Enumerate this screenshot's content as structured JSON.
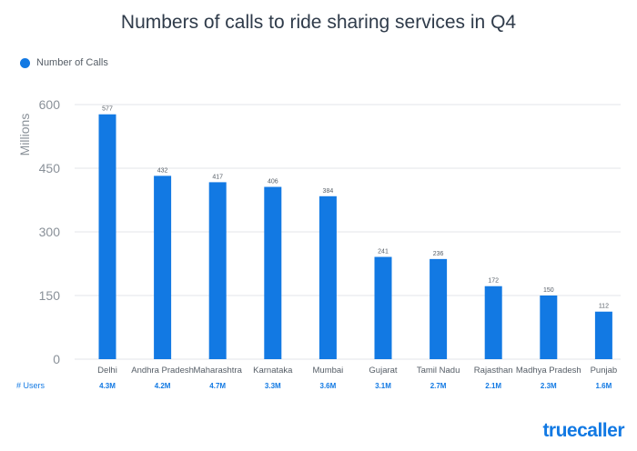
{
  "chart_data": {
    "type": "bar",
    "title": "Numbers of calls to ride sharing services in Q4",
    "ylabel": "Millions",
    "xlabel": "",
    "ylim": [
      0,
      600
    ],
    "yticks": [
      0,
      150,
      300,
      450,
      600
    ],
    "grid": true,
    "legend": "top-left",
    "categories": [
      "Delhi",
      "Andhra Pradesh",
      "Maharashtra",
      "Karnataka",
      "Mumbai",
      "Gujarat",
      "Tamil Nadu",
      "Rajasthan",
      "Madhya Pradesh",
      "Punjab"
    ],
    "series": [
      {
        "name": "Number of Calls",
        "values": [
          577,
          432,
          417,
          406,
          384,
          241,
          236,
          172,
          150,
          112
        ]
      }
    ],
    "footer_label": "# Users",
    "users": [
      "4.3M",
      "4.2M",
      "4.7M",
      "3.3M",
      "3.6M",
      "3.1M",
      "2.7M",
      "2.1M",
      "2.3M",
      "1.6M"
    ]
  },
  "colors": {
    "bar": "#1279e3",
    "grid": "#e3e6ea",
    "axis_text": "#8a9199",
    "title": "#2f3b4a"
  },
  "brand": {
    "logo_text": "truecaller"
  }
}
